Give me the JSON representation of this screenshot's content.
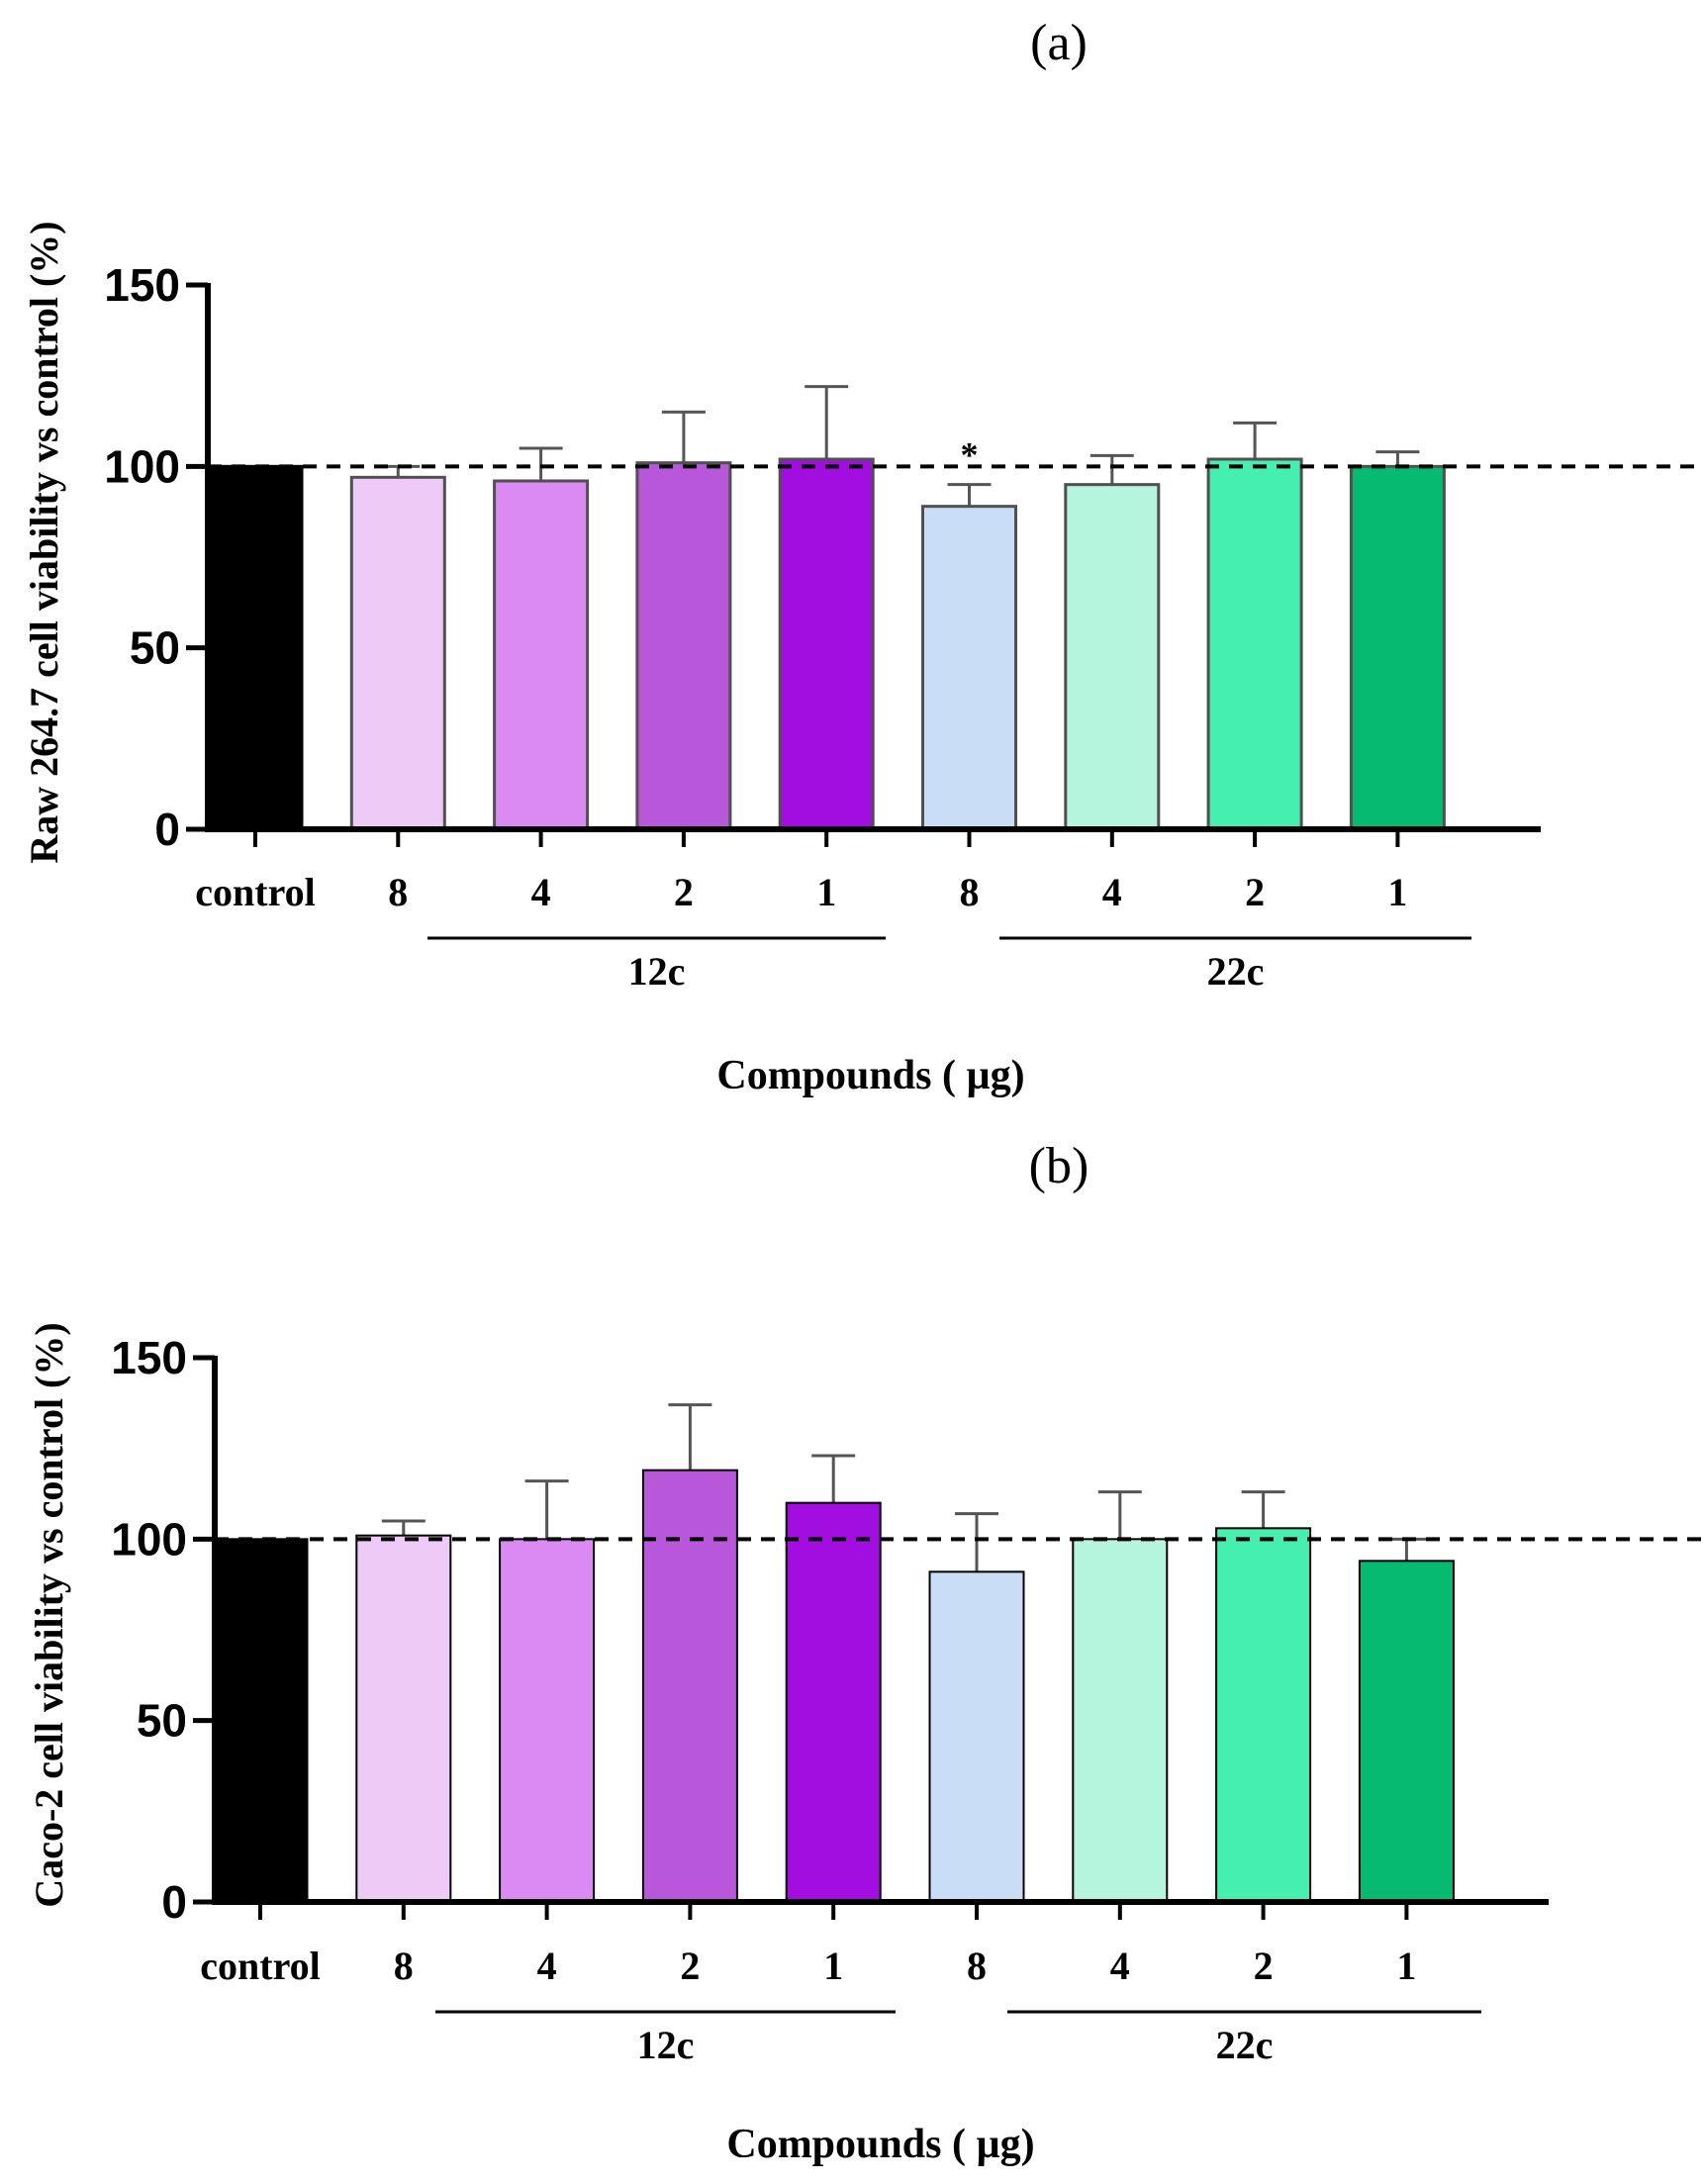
{
  "colors": {
    "axis": "#000000",
    "control": "#000000",
    "c12_8": "#EDCBF6",
    "c12_4": "#DA8AF2",
    "c12_2": "#B957DA",
    "c12_1": "#A20EE0",
    "c22_8": "#C9DDF7",
    "c22_4": "#B5F5DD",
    "c22_2": "#45EFAF",
    "c22_1": "#06BA72"
  },
  "chart_data": [
    {
      "type": "bar",
      "panel_label": "(a)",
      "ylabel": "Raw 264.7 cell viability vs control (%)",
      "xlabel": "Compounds ( µg)",
      "ylim": [
        0,
        150
      ],
      "yticks": [
        "0",
        "50",
        "100",
        "150"
      ],
      "reference_line": 100,
      "categories": [
        "control",
        "8",
        "4",
        "2",
        "1",
        "8",
        "4",
        "2",
        "1"
      ],
      "groups": [
        {
          "name": "12c",
          "from": 1,
          "to": 4
        },
        {
          "name": "22c",
          "from": 5,
          "to": 8
        }
      ],
      "values": [
        100,
        97,
        96,
        101,
        102,
        89,
        95,
        102,
        100
      ],
      "errors": [
        0,
        3,
        9,
        14,
        20,
        6,
        8,
        10,
        4
      ],
      "significance": [
        "",
        "",
        "",
        "",
        "",
        "*",
        "",
        "",
        ""
      ]
    },
    {
      "type": "bar",
      "panel_label": "(b)",
      "ylabel": "Caco-2 cell viability vs control (%)",
      "xlabel": "Compounds ( µg)",
      "ylim": [
        0,
        150
      ],
      "yticks": [
        "0",
        "50",
        "100",
        "150"
      ],
      "reference_line": 100,
      "categories": [
        "control",
        "8",
        "4",
        "2",
        "1",
        "8",
        "4",
        "2",
        "1"
      ],
      "groups": [
        {
          "name": "12c",
          "from": 1,
          "to": 4
        },
        {
          "name": "22c",
          "from": 5,
          "to": 8
        }
      ],
      "values": [
        100,
        101,
        100,
        119,
        110,
        91,
        100,
        103,
        94
      ],
      "errors": [
        0,
        4,
        16,
        18,
        13,
        16,
        13,
        10,
        6
      ],
      "significance": [
        "",
        "",
        "",
        "",
        "",
        "",
        "",
        "",
        ""
      ]
    }
  ]
}
